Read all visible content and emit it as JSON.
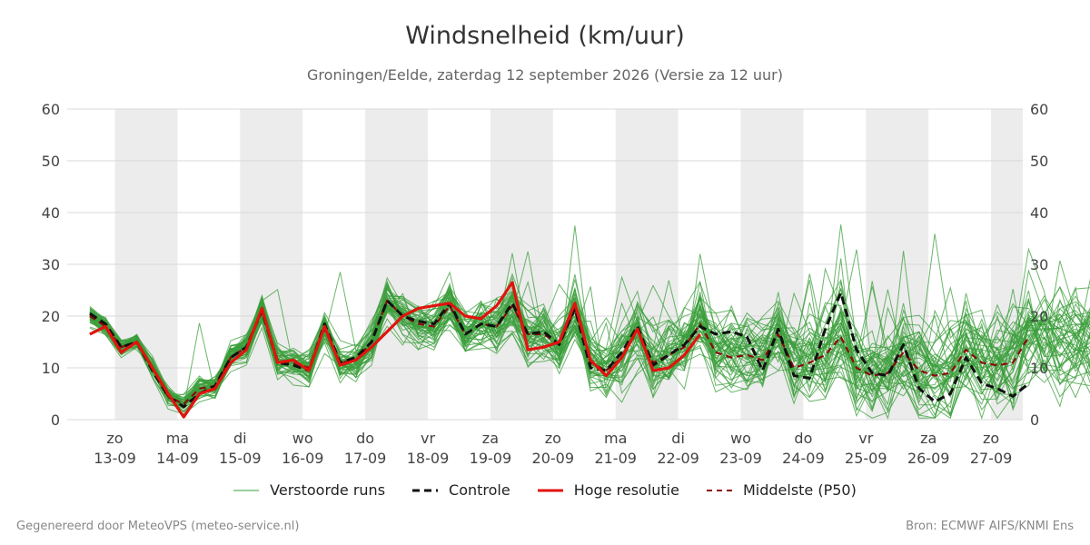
{
  "title": "Windsnelheid (km/uur)",
  "subtitle": "Groningen/Eelde, zaterdag 12 september 2026 (Versie za 12 uur)",
  "legend": {
    "ensemble": "Verstoorde runs",
    "control": "Controle",
    "hires": "Hoge resolutie",
    "median": "Middelste (P50)"
  },
  "footer": {
    "left": "Gegenereerd door MeteoVPS (meteo-service.nl)",
    "right": "Bron: ECMWF AIFS/KNMI Ens"
  },
  "colors": {
    "ensemble": "#3a9e3a",
    "control": "#111111",
    "hires": "#e0140e",
    "median": "#8b0a0a",
    "shade": "#ececec",
    "grid": "#d9d9d9"
  },
  "chart_data": {
    "type": "line",
    "title": "Windsnelheid (km/uur)",
    "xlabel": "",
    "ylabel": "",
    "ylim": [
      0,
      60
    ],
    "yticks": [
      0,
      10,
      20,
      30,
      40,
      50,
      60
    ],
    "grid": true,
    "legend_position": "bottom",
    "x_start_day": 12.6,
    "x_end_day": 28.5,
    "step_days": 0.25,
    "day_ticks": [
      {
        "day": 13,
        "weekday": "zo",
        "date": "13-09"
      },
      {
        "day": 14,
        "weekday": "ma",
        "date": "14-09"
      },
      {
        "day": 15,
        "weekday": "di",
        "date": "15-09"
      },
      {
        "day": 16,
        "weekday": "wo",
        "date": "16-09"
      },
      {
        "day": 17,
        "weekday": "do",
        "date": "17-09"
      },
      {
        "day": 18,
        "weekday": "vr",
        "date": "18-09"
      },
      {
        "day": 19,
        "weekday": "za",
        "date": "19-09"
      },
      {
        "day": 20,
        "weekday": "zo",
        "date": "20-09"
      },
      {
        "day": 21,
        "weekday": "ma",
        "date": "21-09"
      },
      {
        "day": 22,
        "weekday": "di",
        "date": "22-09"
      },
      {
        "day": 23,
        "weekday": "wo",
        "date": "23-09"
      },
      {
        "day": 24,
        "weekday": "do",
        "date": "24-09"
      },
      {
        "day": 25,
        "weekday": "vr",
        "date": "25-09"
      },
      {
        "day": 26,
        "weekday": "za",
        "date": "26-09"
      },
      {
        "day": 27,
        "weekday": "zo",
        "date": "27-09"
      }
    ],
    "shaded_day_spans": [
      [
        13.0,
        14.0
      ],
      [
        15.0,
        16.0
      ],
      [
        17.0,
        18.0
      ],
      [
        19.0,
        20.0
      ],
      [
        21.0,
        22.0
      ],
      [
        23.0,
        24.0
      ],
      [
        25.0,
        26.0
      ],
      [
        27.0,
        28.0
      ]
    ],
    "series": [
      {
        "name": "Hoge resolutie",
        "kind": "hires",
        "values": [
          16.5,
          18,
          13,
          15,
          10,
          5,
          0.5,
          5,
          6,
          11,
          13.5,
          21.5,
          11,
          11.5,
          9.5,
          18,
          10.5,
          11.5,
          14,
          17,
          20,
          21.5,
          22,
          22.5,
          20,
          19.5,
          22,
          26.5,
          13.5,
          14,
          15,
          22.5,
          11.5,
          8.5,
          12,
          17.5,
          9.5,
          10,
          12.5,
          16.5
        ]
      },
      {
        "name": "Controle",
        "kind": "control",
        "values": [
          20.5,
          18.5,
          14,
          15,
          9.5,
          4.5,
          2.5,
          5,
          6.5,
          12,
          14,
          21,
          11,
          10.5,
          9.5,
          18.5,
          11,
          12,
          15,
          23,
          20,
          19,
          18.5,
          22.5,
          16.5,
          18.5,
          18,
          22.5,
          16.5,
          17,
          14.5,
          21.5,
          10,
          9.5,
          13,
          18,
          10.5,
          12.5,
          14.5,
          18,
          16.5,
          17,
          16,
          9.5,
          17.5,
          8.5,
          8,
          17.5,
          24.5,
          13.5,
          9,
          8.5,
          14.5,
          6,
          3.5,
          5,
          12,
          7,
          6,
          4.5,
          7
        ]
      },
      {
        "name": "Middelste (P50)",
        "kind": "median",
        "values": [
          20,
          18,
          14,
          15,
          10,
          4.5,
          3,
          6,
          6.5,
          12,
          14,
          21,
          11.5,
          11,
          10,
          17.5,
          11,
          11.5,
          15,
          23,
          20,
          18.5,
          18,
          22,
          16.5,
          18.5,
          18,
          22,
          16.5,
          16.5,
          14.5,
          21.5,
          11,
          9.5,
          12,
          17.5,
          11,
          12.5,
          14,
          18.5,
          13,
          12,
          12.5,
          11.5,
          16.5,
          10,
          11,
          12.5,
          16,
          10,
          8.5,
          9,
          13,
          9.5,
          8.5,
          9,
          13.5,
          11,
          10.5,
          11,
          16
        ]
      }
    ]
  }
}
